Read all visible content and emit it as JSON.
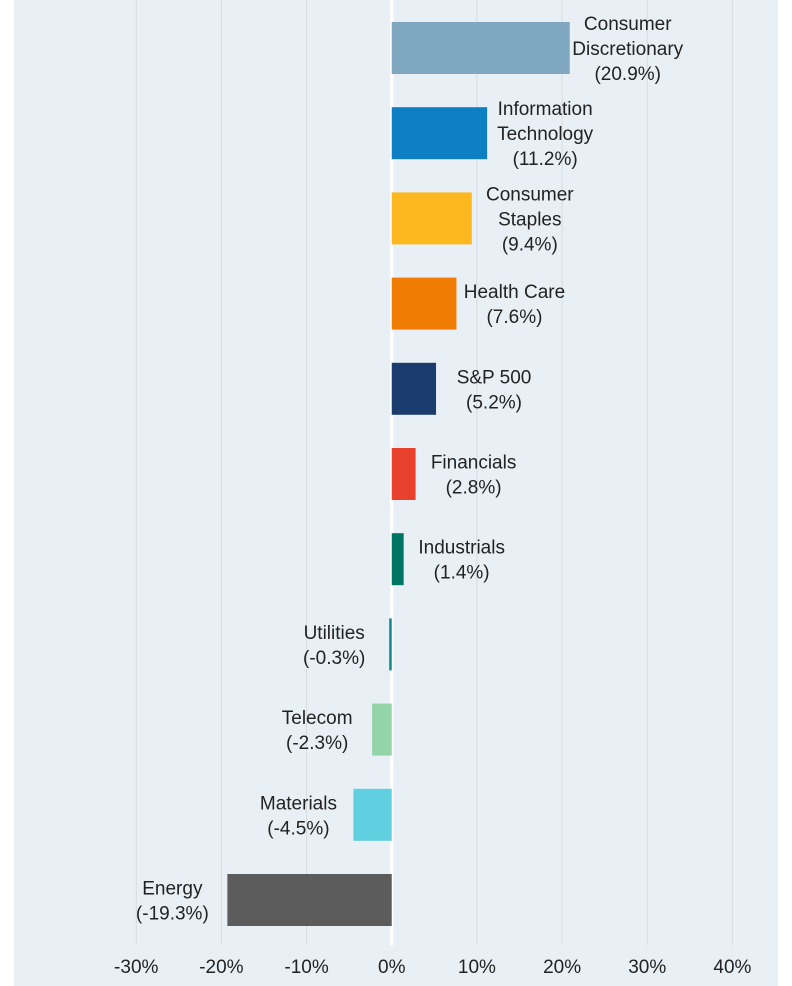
{
  "chart_data": {
    "type": "hbar",
    "categories": [
      "Consumer Discretionary",
      "Information Technology",
      "Consumer Staples",
      "Health Care",
      "S&P 500",
      "Financials",
      "Industrials",
      "Utilities",
      "Telecom",
      "Materials",
      "Energy"
    ],
    "values": [
      20.9,
      11.2,
      9.4,
      7.6,
      5.2,
      2.8,
      1.4,
      -0.3,
      -2.3,
      -4.5,
      -19.3
    ],
    "value_labels": [
      "(20.9%)",
      "(11.2%)",
      "(9.4%)",
      "(7.6%)",
      "(5.2%)",
      "(2.8%)",
      "(1.4%)",
      "(-0.3%)",
      "(-2.3%)",
      "(-4.5%)",
      "(-19.3%)"
    ],
    "colors": [
      "#7fa7c0",
      "#0f7fc4",
      "#fdb81f",
      "#f07c06",
      "#1b3c6e",
      "#e8422f",
      "#007565",
      "#138c8c",
      "#93d4a9",
      "#60cfe0",
      "#5c5c5c"
    ],
    "xlim": [
      -44,
      45
    ],
    "xticks": [
      {
        "value": -30,
        "label": "-30%"
      },
      {
        "value": -20,
        "label": "-20%"
      },
      {
        "value": -10,
        "label": "-10%"
      },
      {
        "value": 0,
        "label": "0%"
      },
      {
        "value": 10,
        "label": "10%"
      },
      {
        "value": 20,
        "label": "20%"
      },
      {
        "value": 30,
        "label": "30%"
      },
      {
        "value": 40,
        "label": "40%"
      }
    ],
    "grid": true
  }
}
